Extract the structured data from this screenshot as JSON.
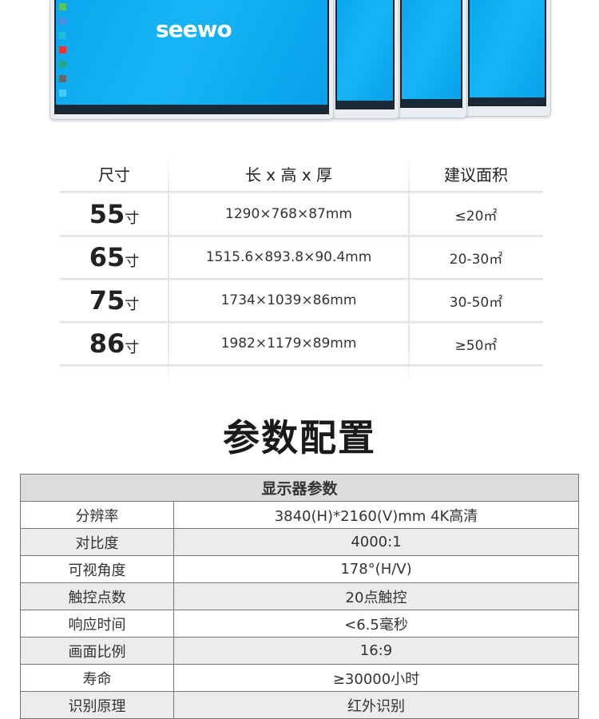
{
  "hero": {
    "brand_logo": "seewo"
  },
  "size_table": {
    "headers": [
      "尺寸",
      "长 x 高 x 厚",
      "建议面积"
    ],
    "unit": "寸",
    "rows": [
      {
        "size": "55",
        "dimensions": "1290×768×87mm",
        "area": "≤20㎡"
      },
      {
        "size": "65",
        "dimensions": "1515.6×893.8×90.4mm",
        "area": "20-30㎡"
      },
      {
        "size": "75",
        "dimensions": "1734×1039×86mm",
        "area": "30-50㎡"
      },
      {
        "size": "86",
        "dimensions": "1982×1179×89mm",
        "area": "≥50㎡"
      }
    ]
  },
  "section_title": "参数配置",
  "params_table": {
    "header": "显示器参数",
    "rows": [
      {
        "key": "分辨率",
        "value": "3840(H)*2160(V)mm  4K高清"
      },
      {
        "key": "对比度",
        "value": "4000:1"
      },
      {
        "key": "可视角度",
        "value": "178°(H/V)"
      },
      {
        "key": "触控点数",
        "value": "20点触控"
      },
      {
        "key": "响应时间",
        "value": "<6.5毫秒"
      },
      {
        "key": "画面比例",
        "value": "16:9"
      },
      {
        "key": "寿命",
        "value": "≥30000小时"
      },
      {
        "key": "识别原理",
        "value": "红外识别"
      }
    ]
  }
}
